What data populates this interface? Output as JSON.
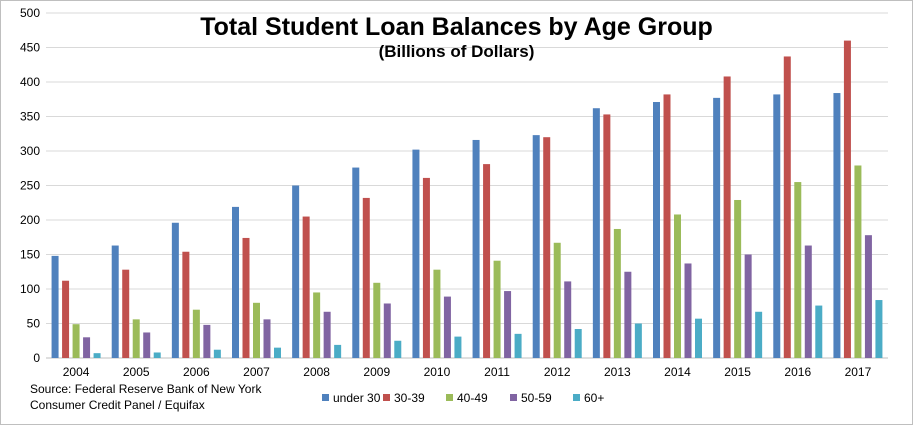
{
  "chart_data": {
    "type": "bar",
    "title": "Total Student Loan Balances by Age Group",
    "subtitle": "(Billions of Dollars)",
    "categories": [
      "2004",
      "2005",
      "2006",
      "2007",
      "2008",
      "2009",
      "2010",
      "2011",
      "2012",
      "2013",
      "2014",
      "2015",
      "2016",
      "2017"
    ],
    "series": [
      {
        "name": "under 30",
        "color": "#4f81bd",
        "values": [
          148,
          163,
          196,
          219,
          250,
          276,
          302,
          316,
          323,
          362,
          371,
          377,
          382,
          384
        ]
      },
      {
        "name": "30-39",
        "color": "#c0504d",
        "values": [
          112,
          128,
          154,
          174,
          205,
          232,
          261,
          281,
          320,
          353,
          382,
          408,
          437,
          460
        ]
      },
      {
        "name": "40-49",
        "color": "#9bbb59",
        "values": [
          49,
          56,
          70,
          80,
          95,
          109,
          128,
          141,
          167,
          187,
          208,
          229,
          255,
          279
        ]
      },
      {
        "name": "50-59",
        "color": "#8064a2",
        "values": [
          30,
          37,
          48,
          56,
          67,
          79,
          89,
          97,
          111,
          125,
          137,
          150,
          163,
          178
        ]
      },
      {
        "name": "60+",
        "color": "#4bacc6",
        "values": [
          7,
          8,
          12,
          15,
          19,
          25,
          31,
          35,
          42,
          50,
          57,
          67,
          76,
          84
        ]
      }
    ],
    "yticks": [
      0,
      50,
      100,
      150,
      200,
      250,
      300,
      350,
      400,
      450,
      500
    ],
    "ylim": [
      0,
      500
    ],
    "grid": true,
    "legend": "bottom-center",
    "xlabel": "",
    "ylabel": ""
  },
  "source": {
    "line1": "Source: Federal Reserve Bank of New York",
    "line2": "Consumer Credit Panel / Equifax"
  }
}
